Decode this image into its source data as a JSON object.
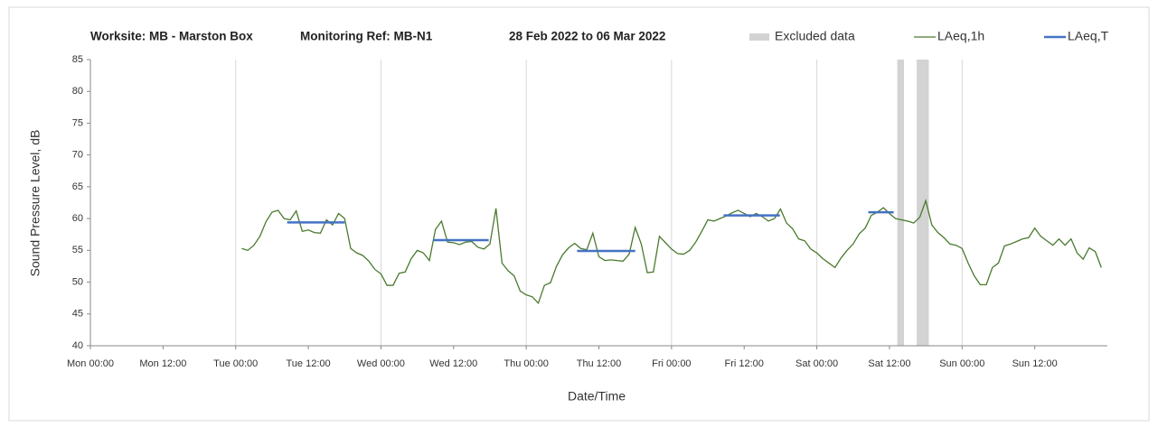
{
  "chart_data": {
    "type": "line",
    "title_parts": [
      "Worksite: MB - Marston Box",
      "Monitoring Ref: MB-N1",
      "28 Feb 2022 to 06 Mar 2022"
    ],
    "x_label": "Date/Time",
    "y_label": "Sound Pressure Level, dB",
    "xlim": [
      0,
      168
    ],
    "xticks": [
      {
        "value": 0,
        "label": "Mon 00:00"
      },
      {
        "value": 12,
        "label": "Mon 12:00"
      },
      {
        "value": 24,
        "label": "Tue 00:00"
      },
      {
        "value": 36,
        "label": "Tue 12:00"
      },
      {
        "value": 48,
        "label": "Wed 00:00"
      },
      {
        "value": 60,
        "label": "Wed 12:00"
      },
      {
        "value": 72,
        "label": "Thu 00:00"
      },
      {
        "value": 84,
        "label": "Thu 12:00"
      },
      {
        "value": 96,
        "label": "Fri 00:00"
      },
      {
        "value": 108,
        "label": "Fri 12:00"
      },
      {
        "value": 120,
        "label": "Sat 00:00"
      },
      {
        "value": 132,
        "label": "Sat 12:00"
      },
      {
        "value": 144,
        "label": "Sun 00:00"
      },
      {
        "value": 156,
        "label": "Sun 12:00"
      }
    ],
    "ylim": [
      40,
      85
    ],
    "yticks": [
      40,
      45,
      50,
      55,
      60,
      65,
      70,
      75,
      80,
      85
    ],
    "grid": "x",
    "excluded": {
      "name": "Excluded data",
      "color": "#d3d3d3",
      "ranges": [
        [
          133.3,
          134.4
        ],
        [
          136.5,
          138.5
        ]
      ]
    },
    "x": [
      25,
      26,
      27,
      28,
      29,
      30,
      31,
      32,
      33,
      34,
      35,
      36,
      37,
      38,
      39,
      40,
      41,
      42,
      43,
      44,
      45,
      46,
      47,
      48,
      49,
      50,
      51,
      52,
      53,
      54,
      55,
      56,
      57,
      58,
      59,
      60,
      61,
      62,
      63,
      64,
      65,
      66,
      67,
      68,
      69,
      70,
      71,
      72,
      73,
      74,
      75,
      76,
      77,
      78,
      79,
      80,
      81,
      82,
      83,
      84,
      85,
      86,
      87,
      88,
      89,
      90,
      91,
      92,
      93,
      94,
      95,
      96,
      97,
      98,
      99,
      100,
      101,
      102,
      103,
      104,
      105,
      106,
      107,
      108,
      109,
      110,
      111,
      112,
      113,
      114,
      115,
      116,
      117,
      118,
      119,
      120,
      121,
      122,
      123,
      124,
      125,
      126,
      127,
      128,
      129,
      130,
      131,
      132,
      133,
      134,
      135,
      136,
      137,
      138,
      139,
      140,
      141,
      142,
      143,
      144,
      145,
      146,
      147,
      148,
      149,
      150,
      151,
      152,
      153,
      154,
      155,
      156,
      157,
      158,
      159,
      160,
      161,
      162,
      163,
      164,
      165,
      166,
      167
    ],
    "series": [
      {
        "name": "LAeq,1h",
        "color": "#4a7a2e",
        "values": [
          55.3,
          55.0,
          55.8,
          57.2,
          59.5,
          61.0,
          61.3,
          60.0,
          59.8,
          61.2,
          58.0,
          58.2,
          57.8,
          57.7,
          59.8,
          59.0,
          60.8,
          60.0,
          55.3,
          54.6,
          54.2,
          53.3,
          52.0,
          51.3,
          49.5,
          49.5,
          51.4,
          51.6,
          53.7,
          55.0,
          54.6,
          53.4,
          58.3,
          59.6,
          56.3,
          56.2,
          55.9,
          56.3,
          56.4,
          55.5,
          55.2,
          56.0,
          61.6,
          53.0,
          51.8,
          51.0,
          48.6,
          48.0,
          47.7,
          46.7,
          49.5,
          49.9,
          52.5,
          54.3,
          55.4,
          56.1,
          55.3,
          55.1,
          57.7,
          54.0,
          53.4,
          53.5,
          53.4,
          53.3,
          54.4,
          58.6,
          56.0,
          51.5,
          51.6,
          57.2,
          56.2,
          55.2,
          54.5,
          54.4,
          55.0,
          56.3,
          58.0,
          59.8,
          59.6,
          60.0,
          60.4,
          60.9,
          61.3,
          60.8,
          60.3,
          60.8,
          60.3,
          59.6,
          60.0,
          61.5,
          59.3,
          58.4,
          56.8,
          56.5,
          55.2,
          54.6,
          53.7,
          53.0,
          52.3,
          53.8,
          55.0,
          56.0,
          57.6,
          58.5,
          60.5,
          61.0,
          61.7,
          60.8,
          60.0,
          59.8,
          59.6,
          59.3,
          60.2,
          62.8,
          59.0,
          57.8,
          57.0,
          56.0,
          55.8,
          55.3,
          53.0,
          51.0,
          49.6,
          49.6,
          52.3,
          53.0,
          55.7,
          56.0,
          56.4,
          56.8,
          57.0,
          58.5,
          57.2,
          56.5,
          55.8,
          56.8,
          55.8,
          56.8,
          54.6,
          53.6,
          55.4,
          54.8,
          52.3
        ]
      },
      {
        "name": "LAeq,T",
        "color": "#4472c4",
        "segments": [
          {
            "start": 32.5,
            "end": 42,
            "value": 59.4
          },
          {
            "start": 56.6,
            "end": 65.8,
            "value": 56.6
          },
          {
            "start": 80.4,
            "end": 90,
            "value": 54.9
          },
          {
            "start": 104.6,
            "end": 113.9,
            "value": 60.5
          },
          {
            "start": 128.5,
            "end": 132.7,
            "value": 61.0
          }
        ]
      }
    ]
  }
}
